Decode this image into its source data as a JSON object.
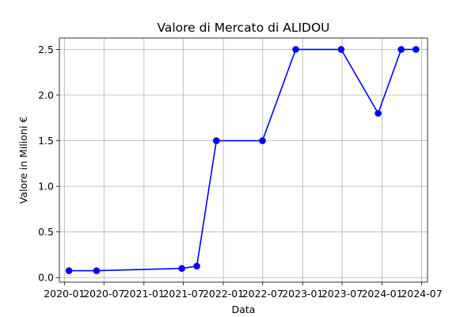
{
  "chart_data": {
    "type": "line",
    "title": "Valore di Mercato di ALIDOU",
    "xlabel": "Data",
    "ylabel": "Valore in Milioni €",
    "x_type": "date",
    "x_ticks": [
      {
        "date": "2020-01-01",
        "label": "2020-01"
      },
      {
        "date": "2020-07-01",
        "label": "2020-07"
      },
      {
        "date": "2021-01-01",
        "label": "2021-01"
      },
      {
        "date": "2021-07-01",
        "label": "2021-07"
      },
      {
        "date": "2022-01-01",
        "label": "2022-01"
      },
      {
        "date": "2022-07-01",
        "label": "2022-07"
      },
      {
        "date": "2023-01-01",
        "label": "2023-01"
      },
      {
        "date": "2023-07-01",
        "label": "2023-07"
      },
      {
        "date": "2024-01-01",
        "label": "2024-01"
      },
      {
        "date": "2024-07-01",
        "label": "2024-07"
      }
    ],
    "y_ticks": [
      {
        "value": 0.0,
        "label": "0.0"
      },
      {
        "value": 0.5,
        "label": "0.5"
      },
      {
        "value": 1.0,
        "label": "1.0"
      },
      {
        "value": 1.5,
        "label": "1.5"
      },
      {
        "value": 2.0,
        "label": "2.0"
      },
      {
        "value": 2.5,
        "label": "2.5"
      }
    ],
    "xlim": [
      "2019-12-09",
      "2024-07-28"
    ],
    "ylim": [
      -0.05,
      2.625
    ],
    "grid": true,
    "series": [
      {
        "color": "#0000ff",
        "marker": "circle",
        "points": [
          {
            "x": "2020-01-22",
            "y": 0.075
          },
          {
            "x": "2020-05-28",
            "y": 0.075
          },
          {
            "x": "2021-06-24",
            "y": 0.1
          },
          {
            "x": "2021-09-01",
            "y": 0.125
          },
          {
            "x": "2021-11-30",
            "y": 1.5
          },
          {
            "x": "2022-06-30",
            "y": 1.5
          },
          {
            "x": "2022-11-30",
            "y": 2.5
          },
          {
            "x": "2023-06-27",
            "y": 2.5
          },
          {
            "x": "2023-12-14",
            "y": 1.8
          },
          {
            "x": "2024-03-29",
            "y": 2.5
          },
          {
            "x": "2024-06-05",
            "y": 2.5
          }
        ]
      }
    ]
  }
}
